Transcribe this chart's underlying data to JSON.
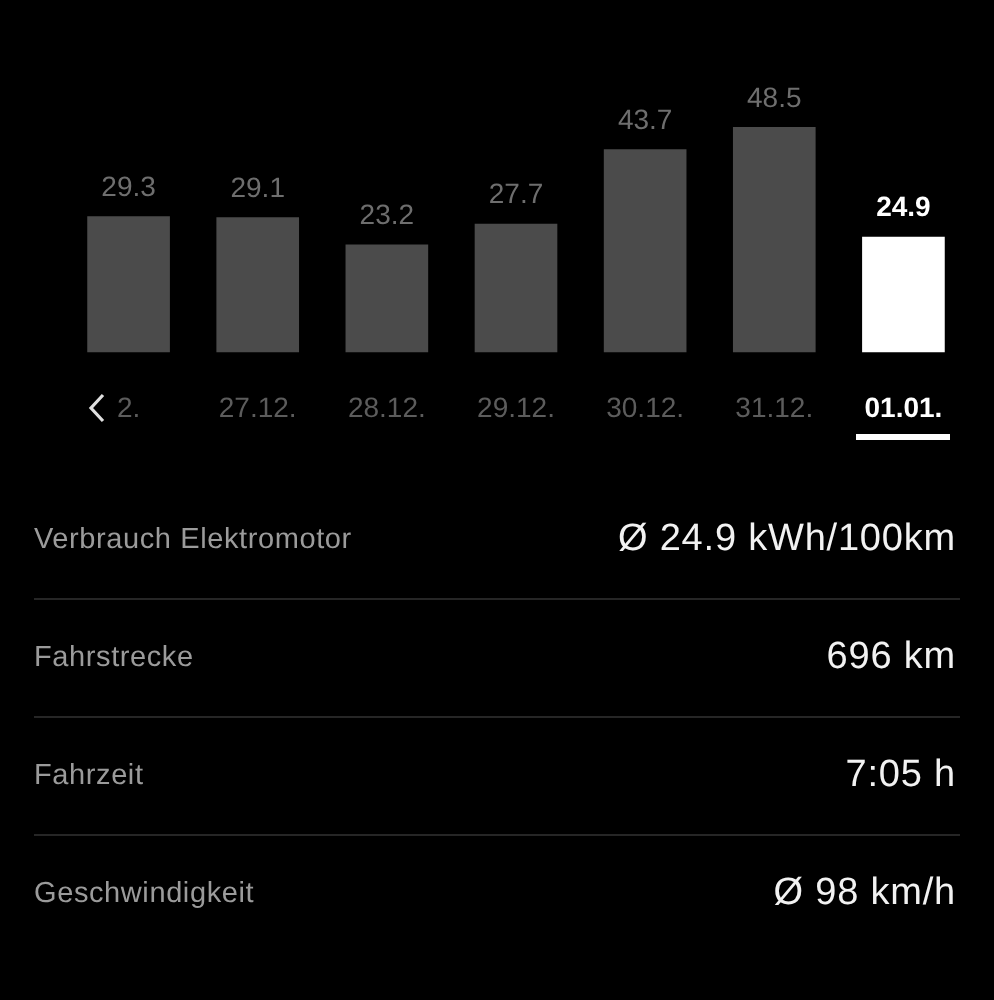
{
  "chart_data": [
    {
      "type": "bar",
      "categories": [
        "2.",
        "27.12.",
        "28.12.",
        "29.12.",
        "30.12.",
        "31.12.",
        "01.01."
      ],
      "values": [
        29.3,
        29.1,
        23.2,
        27.7,
        43.7,
        48.5,
        24.9
      ],
      "colors": [
        "#4b4b4b",
        "#4b4b4b",
        "#4b4b4b",
        "#4b4b4b",
        "#4b4b4b",
        "#4b4b4b",
        "#ffffff"
      ],
      "data_labels": true
    },
    {
      "type": "other",
      "annotations": [
        "Verbrauch Elektromotor",
        "Ø 24.9 kWh/100km",
        "Fahrstrecke",
        "696 km",
        "Fahrzeit",
        "7:05 h",
        "Geschwindigkeit",
        "Ø 98 km/h"
      ]
    }
  ]
}
